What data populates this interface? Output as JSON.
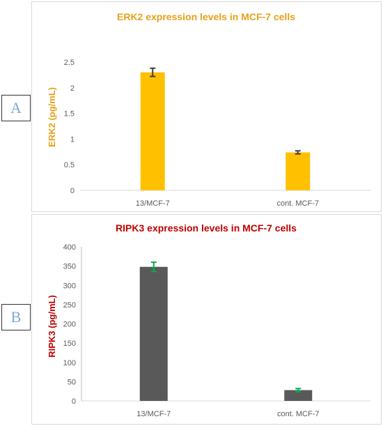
{
  "panels": [
    {
      "id": "a",
      "label": "A"
    },
    {
      "id": "b",
      "label": "B"
    }
  ],
  "chart_data": [
    {
      "type": "bar",
      "title": "ERK2 expression levels in MCF-7 cells",
      "ylabel": "ERK2 (pg/mL)",
      "xlabel": "",
      "categories": [
        "13/MCF-7",
        "cont. MCF-7"
      ],
      "series": [
        {
          "values": [
            2.3,
            0.74
          ],
          "errors": [
            0.08,
            0.03
          ]
        }
      ],
      "ylim": [
        0,
        2.5
      ],
      "yticks": [
        "0",
        "0.5",
        "1",
        "1.5",
        "2",
        "2.5"
      ],
      "ytick_values": [
        0,
        0.5,
        1,
        1.5,
        2,
        2.5
      ],
      "grid": false,
      "colors": {
        "bar": "#ffc000",
        "error": "#404040",
        "title": "#e6a117",
        "ylabel": "#e6a117"
      }
    },
    {
      "type": "bar",
      "title": "RIPK3 expression levels in MCF-7 cells",
      "ylabel": "RIPK3 (pg/mL)",
      "xlabel": "",
      "categories": [
        "13/MCF-7",
        "cont. MCF-7"
      ],
      "series": [
        {
          "values": [
            348,
            28
          ],
          "errors": [
            12,
            4
          ]
        }
      ],
      "ylim": [
        0,
        400
      ],
      "yticks": [
        "0",
        "50",
        "100",
        "150",
        "200",
        "250",
        "300",
        "350",
        "400"
      ],
      "ytick_values": [
        0,
        50,
        100,
        150,
        200,
        250,
        300,
        350,
        400
      ],
      "grid": false,
      "colors": {
        "bar": "#595959",
        "error": "#00b050",
        "title": "#c00000",
        "ylabel": "#c00000"
      }
    }
  ]
}
